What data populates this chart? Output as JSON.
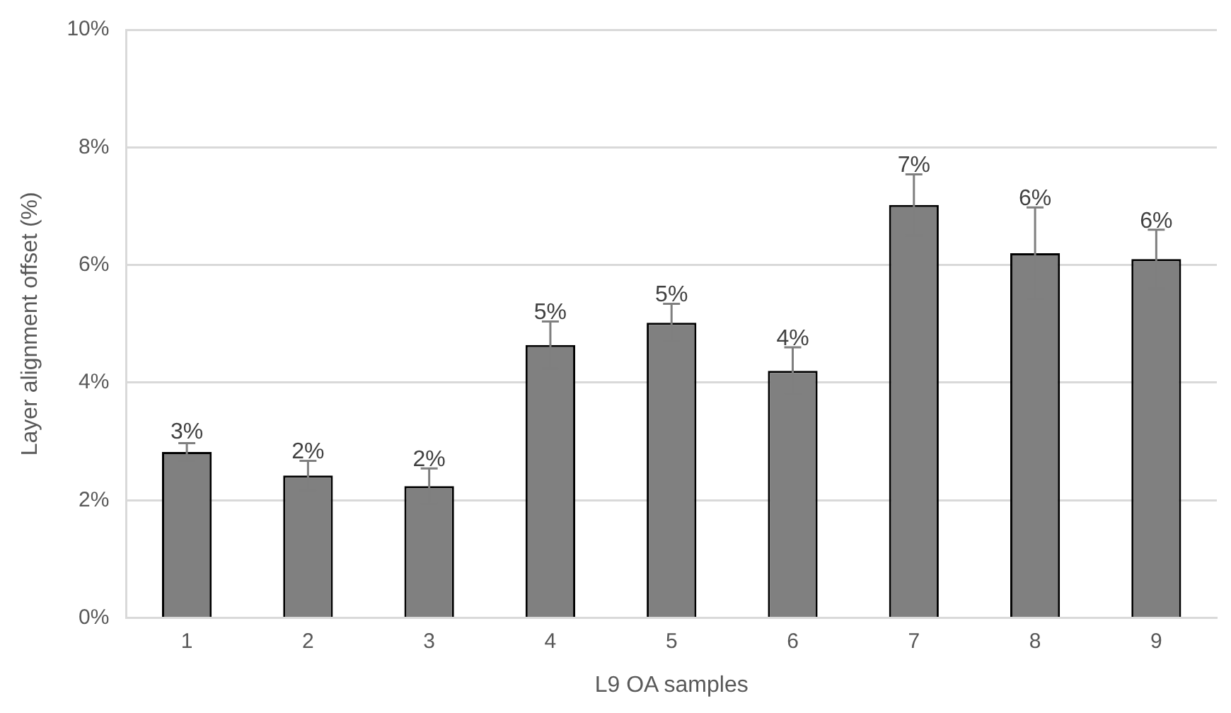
{
  "chart_data": {
    "type": "bar",
    "xlabel": "L9 OA samples",
    "ylabel": "Layer alignment offset (%)",
    "categories": [
      "1",
      "2",
      "3",
      "4",
      "5",
      "6",
      "7",
      "8",
      "9"
    ],
    "values": [
      2.82,
      2.42,
      2.24,
      4.64,
      5.02,
      4.2,
      7.02,
      6.2,
      6.1
    ],
    "errors": [
      0.15,
      0.25,
      0.3,
      0.4,
      0.32,
      0.4,
      0.52,
      0.78,
      0.5
    ],
    "value_labels": [
      "3%",
      "2%",
      "2%",
      "5%",
      "5%",
      "4%",
      "7%",
      "6%",
      "6%"
    ],
    "color": "#808080",
    "ylim": [
      0,
      10
    ],
    "yticks": [
      {
        "value": 0,
        "label": "0%"
      },
      {
        "value": 2,
        "label": "2%"
      },
      {
        "value": 4,
        "label": "4%"
      },
      {
        "value": 6,
        "label": "6%"
      },
      {
        "value": 8,
        "label": "8%"
      },
      {
        "value": 10,
        "label": "10%"
      }
    ],
    "grid": "y",
    "legend": false
  }
}
